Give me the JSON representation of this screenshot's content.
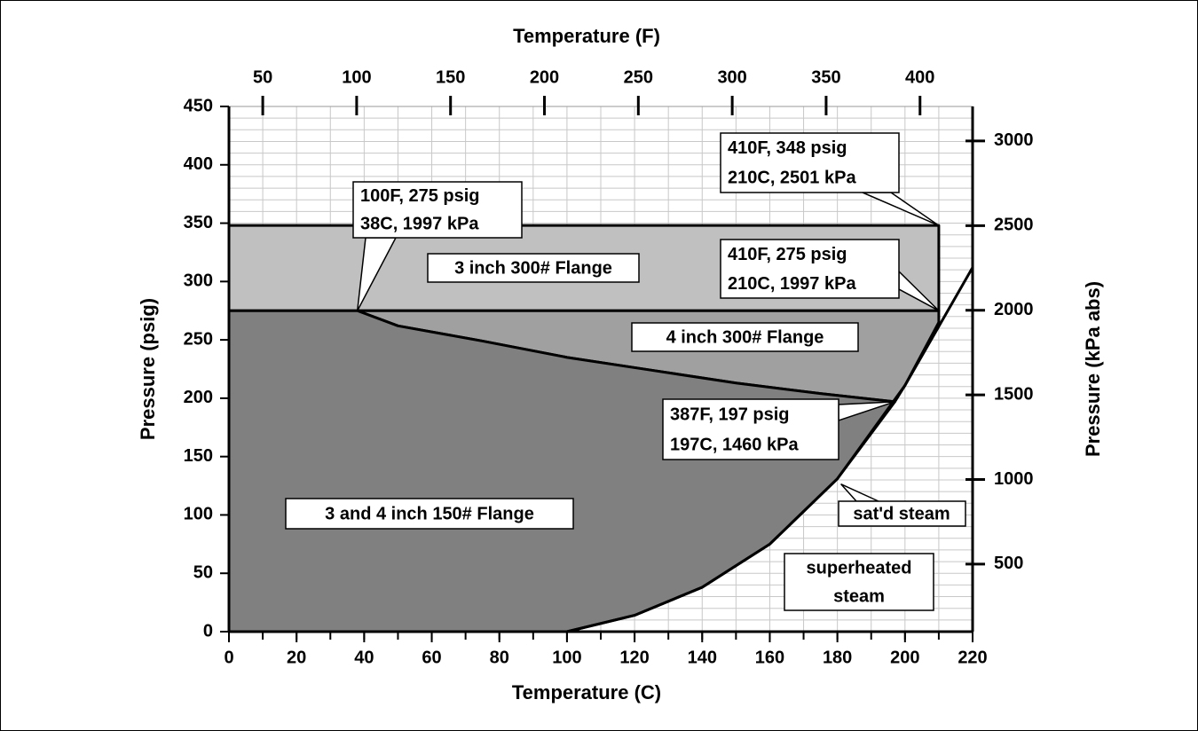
{
  "chart_data": {
    "type": "area",
    "title": "Temperature (F)",
    "xlabel": "Temperature (C)",
    "ylabel": "Pressure (psig)",
    "y2label": "Pressure (kPa abs)",
    "xlim": [
      0,
      220
    ],
    "xticks": [
      0,
      20,
      40,
      60,
      80,
      100,
      120,
      140,
      160,
      180,
      200,
      220
    ],
    "xminorticks": [
      0,
      10,
      20,
      30,
      40,
      50,
      60,
      70,
      80,
      90,
      100,
      110,
      120,
      130,
      140,
      150,
      160,
      170,
      180,
      190,
      200,
      210,
      220
    ],
    "ylim": [
      0,
      450
    ],
    "yticks": [
      0,
      50,
      100,
      150,
      200,
      250,
      300,
      350,
      400,
      450
    ],
    "yminorticks": [
      0,
      10,
      20,
      30,
      40,
      50,
      60,
      70,
      80,
      90,
      100,
      110,
      120,
      130,
      140,
      150,
      160,
      170,
      180,
      190,
      200,
      210,
      220,
      230,
      240,
      250,
      260,
      270,
      280,
      290,
      300,
      310,
      320,
      330,
      340,
      350,
      360,
      370,
      380,
      390,
      400,
      410,
      420,
      430,
      440,
      450
    ],
    "x2lim": [
      32,
      428
    ],
    "x2ticks": [
      50,
      100,
      150,
      200,
      250,
      300,
      350,
      400
    ],
    "y2lim": [
      101.3,
      3204
    ],
    "y2ticks": [
      500,
      1000,
      1500,
      2000,
      2500,
      3000
    ],
    "grid": true,
    "regions": [
      {
        "name": "3 inch 300# Flange",
        "color": "#c0c0c0",
        "x": [
          0,
          0,
          210,
          210
        ],
        "values": [
          275,
          348,
          348,
          275
        ]
      },
      {
        "name": "4 inch 300# Flange",
        "color": "#a0a0a0",
        "x": [
          38,
          210,
          210,
          200,
          197,
          175,
          150,
          125,
          100,
          75,
          50
        ],
        "values": [
          275,
          275,
          265,
          211,
          197,
          204,
          213,
          224,
          235,
          249,
          262
        ]
      },
      {
        "name": "3 and 4 inch 150# Flange",
        "color": "#808080",
        "x": [
          0,
          0,
          38,
          50,
          75,
          100,
          125,
          150,
          175,
          197,
          180,
          160,
          140,
          120,
          100
        ],
        "values": [
          0,
          275,
          275,
          262,
          249,
          235,
          224,
          213,
          204,
          197,
          131,
          75,
          38,
          14,
          0
        ]
      }
    ],
    "series": [
      {
        "name": "sat'd steam",
        "color": "#000000",
        "x": [
          100,
          120,
          140,
          160,
          180,
          200,
          220
        ],
        "values": [
          0,
          14,
          38,
          75,
          131,
          211,
          312
        ]
      }
    ],
    "annotations": [
      {
        "text": [
          "100F, 275 psig",
          "38C, 1997 kPa"
        ],
        "x": 38,
        "y": 275
      },
      {
        "text": [
          "410F, 348 psig",
          "210C, 2501 kPa"
        ],
        "x": 210,
        "y": 348
      },
      {
        "text": [
          "410F, 275 psig",
          "210C, 1997 kPa"
        ],
        "x": 210,
        "y": 275
      },
      {
        "text": [
          "387F, 197 psig",
          "197C, 1460 kPa"
        ],
        "x": 197,
        "y": 197
      }
    ],
    "labels": [
      {
        "text": [
          "superheated",
          "steam"
        ]
      }
    ]
  }
}
